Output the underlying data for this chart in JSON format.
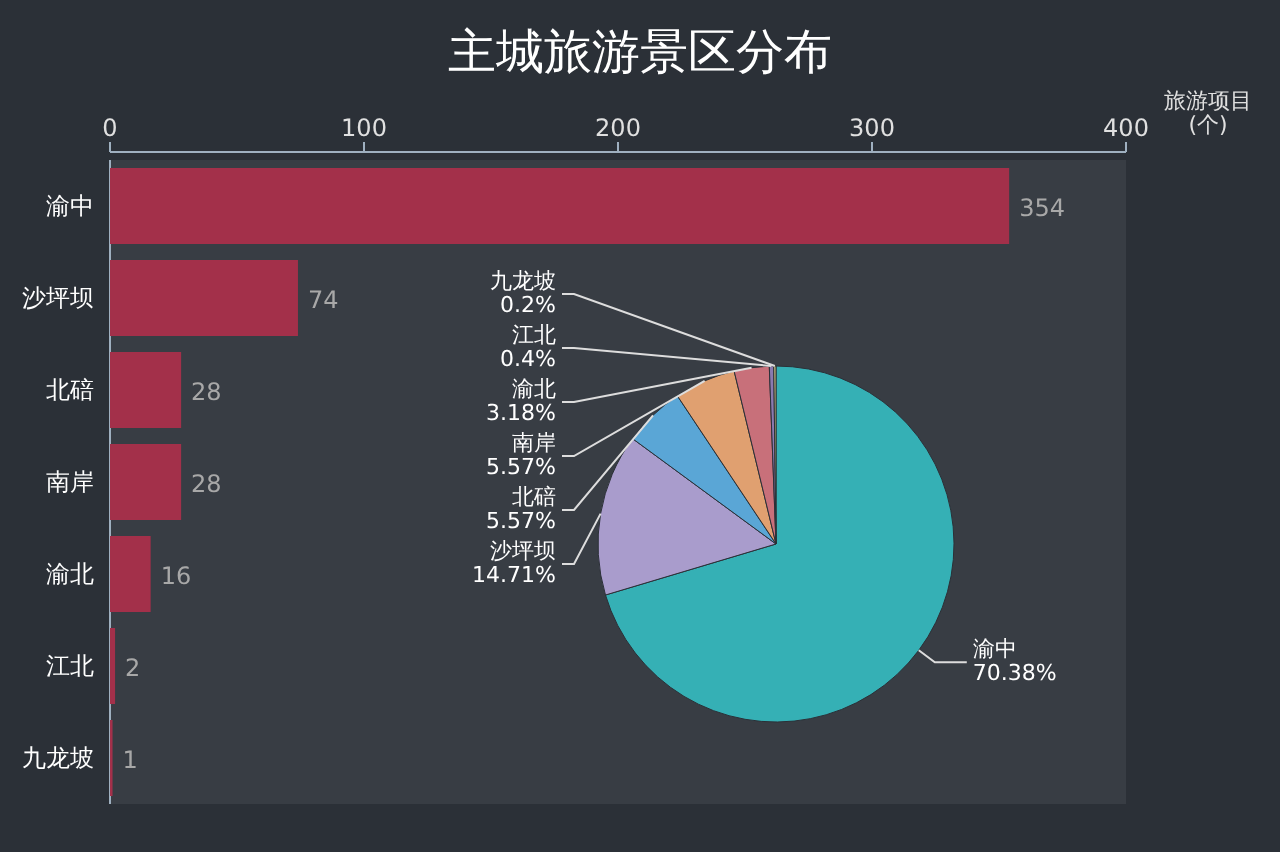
{
  "chart_data": [
    {
      "type": "bar",
      "orientation": "horizontal",
      "title": "主城旅游景区分布",
      "xlabel": "旅游项目 (个)",
      "categories": [
        "渝中",
        "沙坪坝",
        "北碚",
        "南岸",
        "渝北",
        "江北",
        "九龙坡"
      ],
      "values": [
        354,
        74,
        28,
        28,
        16,
        2,
        1
      ],
      "color": "#a3304a",
      "xlim": [
        0,
        400
      ],
      "xticks": [
        0,
        100,
        200,
        300,
        400
      ],
      "data_labels": true
    },
    {
      "type": "pie",
      "categories": [
        "渝中",
        "沙坪坝",
        "北碚",
        "南岸",
        "渝北",
        "江北",
        "九龙坡"
      ],
      "values": [
        70.38,
        14.71,
        5.57,
        5.57,
        3.18,
        0.4,
        0.2
      ],
      "value_labels": [
        "70.38%",
        "14.71%",
        "5.57%",
        "5.57%",
        "3.18%",
        "0.4%",
        "0.2%"
      ],
      "colors": [
        "#35b0b5",
        "#a99ccc",
        "#5aa6d6",
        "#e0a070",
        "#c8707a",
        "#8a7ab0",
        "#d0c080"
      ]
    }
  ]
}
